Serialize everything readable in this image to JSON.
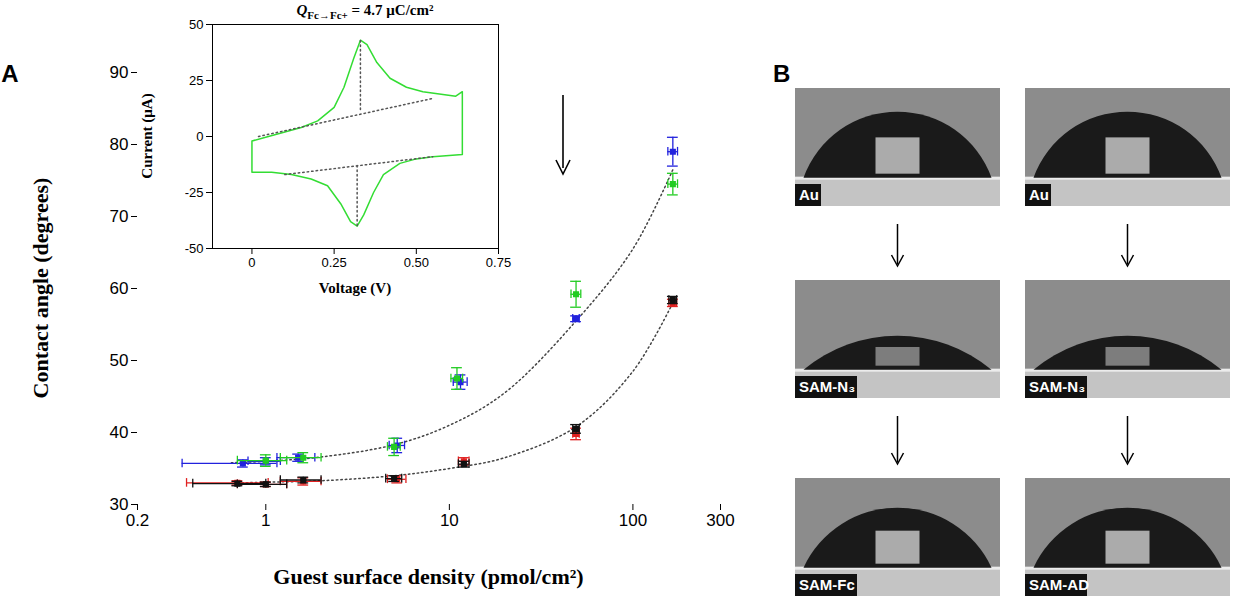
{
  "chart_data": [
    {
      "type": "scatter",
      "xlabel": "Guest surface density (pmol/cm²)",
      "ylabel": "Contact angle (degrees)",
      "log": "x",
      "grid": false,
      "xlim": [
        0.2,
        300
      ],
      "xticks": [
        0.2,
        1,
        10,
        100,
        300
      ],
      "ylim": [
        30,
        90
      ],
      "yticks": [
        30,
        40,
        50,
        60,
        70,
        80,
        90
      ],
      "series": [
        {
          "type": "line",
          "line_style": "dotted",
          "color": "#444444",
          "x": [
            0.65,
            1,
            2,
            5,
            10,
            20,
            49,
            100,
            165
          ],
          "values": [
            35.8,
            36.0,
            36.6,
            38.3,
            41.0,
            45.5,
            55.5,
            65.5,
            76.5
          ]
        },
        {
          "type": "line",
          "line_style": "dotted",
          "color": "#444444",
          "x": [
            0.7,
            1,
            2,
            5,
            10,
            20,
            49,
            100,
            165
          ],
          "values": [
            33.0,
            33.1,
            33.3,
            34.0,
            35.0,
            36.5,
            40.8,
            48.5,
            58.0
          ]
        },
        {
          "type": "scatter",
          "marker": "square",
          "color": "#2222dd",
          "x": [
            0.75,
            1.0,
            1.5,
            5.2,
            11.5,
            49,
            165
          ],
          "values": [
            35.7,
            36.0,
            36.5,
            38.2,
            47.0,
            55.8,
            79.0
          ],
          "x_errors": [
            0.4,
            0.2,
            0.35,
            0.5,
            1.0,
            2.0,
            10
          ],
          "y_errors": [
            0.5,
            0.5,
            0.5,
            1.0,
            1.0,
            0.4,
            2.0
          ]
        },
        {
          "type": "scatter",
          "marker": "square",
          "color": "#22cc22",
          "x": [
            1.0,
            1.6,
            5.0,
            11.0,
            49,
            165
          ],
          "values": [
            36.1,
            36.5,
            38.0,
            47.5,
            59.2,
            74.5
          ],
          "x_errors": [
            0.3,
            0.4,
            0.4,
            0.8,
            3.0,
            10
          ],
          "y_errors": [
            0.8,
            0.7,
            1.2,
            1.5,
            1.8,
            1.5
          ]
        },
        {
          "type": "scatter",
          "marker": "square",
          "color": "#e02020",
          "x": [
            0.7,
            1.0,
            1.6,
            5.2,
            12,
            49,
            165
          ],
          "values": [
            33.0,
            32.8,
            33.2,
            33.5,
            36.0,
            39.8,
            58.0
          ],
          "x_errors": [
            0.33,
            0.3,
            0.4,
            0.6,
            0.8,
            2.0,
            8
          ],
          "y_errors": [
            0.3,
            0.3,
            0.5,
            0.5,
            0.5,
            0.8,
            0.5
          ]
        },
        {
          "type": "scatter",
          "marker": "square",
          "color": "#111111",
          "x": [
            0.7,
            1.0,
            1.6,
            5.0,
            12,
            49,
            165
          ],
          "values": [
            32.9,
            32.8,
            33.4,
            33.6,
            35.6,
            40.5,
            58.4
          ],
          "x_errors": [
            0.3,
            0.3,
            0.4,
            0.5,
            0.8,
            2.0,
            8
          ],
          "y_errors": [
            0.3,
            0.3,
            0.4,
            0.4,
            0.4,
            0.6,
            0.5
          ]
        }
      ]
    },
    {
      "type": "line",
      "title": "QFc→Fc+ = 4.7 μC/cm²",
      "xlabel": "Voltage (V)",
      "ylabel": "Current (μA)",
      "grid": false,
      "xlim": [
        -0.12,
        0.75
      ],
      "xticks": [
        0,
        0.25,
        {
          "value": 0.5,
          "label": "0.50"
        },
        0.75
      ],
      "ylim": [
        -50,
        50
      ],
      "yticks": [
        -50,
        -25,
        0,
        25,
        50
      ],
      "series": [
        {
          "color": "#33dd33",
          "line_style": "solid",
          "x": [
            0,
            0.05,
            0.1,
            0.15,
            0.2,
            0.25,
            0.28,
            0.31,
            0.33,
            0.35,
            0.38,
            0.42,
            0.47,
            0.52,
            0.57,
            0.62,
            0.64,
            0.64,
            0.6,
            0.55,
            0.5,
            0.45,
            0.4,
            0.37,
            0.34,
            0.32,
            0.3,
            0.27,
            0.23,
            0.18,
            0.12,
            0.06,
            0,
            0
          ],
          "values": [
            -2,
            0,
            2,
            4,
            7,
            13,
            22,
            35,
            43,
            41,
            33,
            26,
            22,
            20,
            19,
            18,
            20,
            -8,
            -8.5,
            -9,
            -10,
            -12,
            -17,
            -25,
            -35,
            -40,
            -38,
            -30,
            -22,
            -19,
            -17,
            -16,
            -16,
            -2
          ]
        },
        {
          "color": "#555555",
          "line_style": "dotted",
          "x": [
            0.02,
            0.55
          ],
          "values": [
            0,
            17
          ]
        },
        {
          "color": "#555555",
          "line_style": "dotted",
          "x": [
            0.33,
            0.33
          ],
          "values": [
            12,
            43
          ]
        },
        {
          "color": "#555555",
          "line_style": "dotted",
          "x": [
            0.1,
            0.55
          ],
          "values": [
            -17,
            -9
          ]
        },
        {
          "color": "#555555",
          "line_style": "dotted",
          "x": [
            0.32,
            0.32
          ],
          "values": [
            -13,
            -40
          ]
        }
      ]
    }
  ],
  "panel_labels": [
    "A",
    "B"
  ],
  "photos": [
    [
      "Au",
      "SAM-N₃",
      "SAM-Fc"
    ],
    [
      "Au",
      "SAM-N₃",
      "SAM-AD"
    ]
  ]
}
